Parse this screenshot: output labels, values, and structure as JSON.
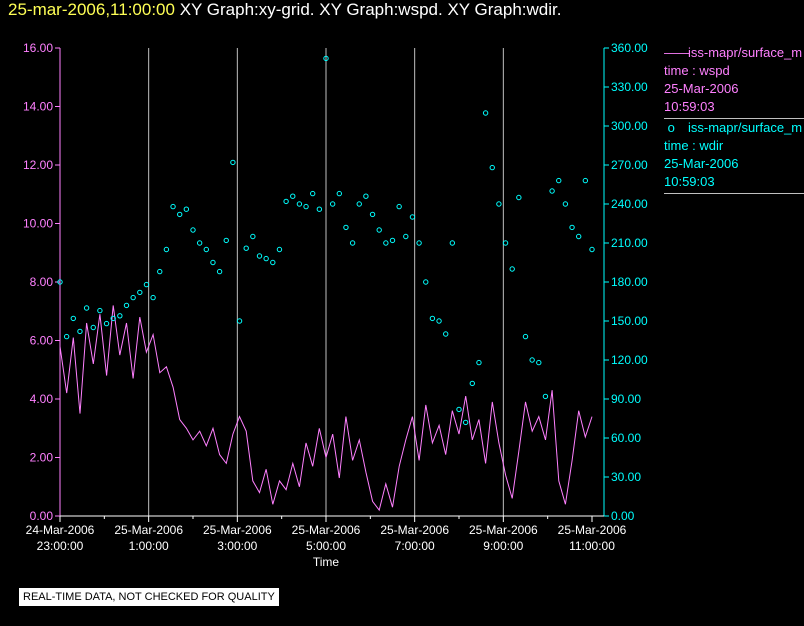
{
  "header": {
    "timestamp": "25-mar-2006,11:00:00",
    "graphs": [
      "XY Graph:xy-grid.",
      "XY Graph:wspd.",
      "XY Graph:wdir."
    ]
  },
  "colors": {
    "wspd": "#ff80ff",
    "wdir": "#00ffff",
    "grid": "#c0c0c0",
    "timestamp": "#ffff55"
  },
  "legend": [
    {
      "source": "iss-mapr/surface_m",
      "var": "time : wspd",
      "date": "25-Mar-2006",
      "time": "10:59:03",
      "symbol": "line"
    },
    {
      "source": "iss-mapr/surface_m",
      "var": "time : wdir",
      "date": "25-Mar-2006",
      "time": "10:59:03",
      "symbol": "circle"
    }
  ],
  "qc_note": "REAL-TIME DATA, NOT CHECKED FOR QUALITY",
  "chart_data": {
    "type": "scatter",
    "xlabel": "Time",
    "x_ticks": [
      {
        "hour": 0,
        "date": "24-Mar-2006",
        "time": "23:00:00"
      },
      {
        "hour": 2,
        "date": "25-Mar-2006",
        "time": "1:00:00"
      },
      {
        "hour": 4,
        "date": "25-Mar-2006",
        "time": "3:00:00"
      },
      {
        "hour": 6,
        "date": "25-Mar-2006",
        "time": "5:00:00"
      },
      {
        "hour": 8,
        "date": "25-Mar-2006",
        "time": "7:00:00"
      },
      {
        "hour": 10,
        "date": "25-Mar-2006",
        "time": "9:00:00"
      },
      {
        "hour": 12,
        "date": "25-Mar-2006",
        "time": "11:00:00"
      }
    ],
    "x_unit": "hours after 24-Mar-2006 23:00:00",
    "xlim": [
      0,
      12
    ],
    "y_left": {
      "series": "wspd",
      "ylim": [
        0,
        16
      ],
      "ticks": [
        "0.00",
        "2.00",
        "4.00",
        "6.00",
        "8.00",
        "10.00",
        "12.00",
        "14.00",
        "16.00"
      ]
    },
    "y_right": {
      "series": "wdir",
      "ylim": [
        0,
        360
      ],
      "ticks": [
        "0.00",
        "30.00",
        "60.00",
        "90.00",
        "120.00",
        "150.00",
        "180.00",
        "210.00",
        "240.00",
        "270.00",
        "300.00",
        "330.00",
        "360.00"
      ]
    },
    "vertical_grid": true,
    "series": [
      {
        "name": "wspd",
        "style": "line",
        "axis": "left",
        "x": [
          0,
          0.15,
          0.3,
          0.45,
          0.6,
          0.75,
          0.9,
          1.05,
          1.2,
          1.35,
          1.5,
          1.65,
          1.8,
          1.95,
          2.1,
          2.25,
          2.4,
          2.55,
          2.7,
          2.85,
          3.0,
          3.15,
          3.3,
          3.45,
          3.6,
          3.75,
          3.9,
          4.05,
          4.2,
          4.35,
          4.5,
          4.65,
          4.8,
          4.95,
          5.1,
          5.25,
          5.4,
          5.55,
          5.7,
          5.85,
          6.0,
          6.15,
          6.3,
          6.45,
          6.6,
          6.75,
          6.9,
          7.05,
          7.2,
          7.35,
          7.5,
          7.65,
          7.8,
          7.95,
          8.1,
          8.25,
          8.4,
          8.55,
          8.7,
          8.85,
          9.0,
          9.15,
          9.3,
          9.45,
          9.6,
          9.75,
          9.9,
          10.05,
          10.2,
          10.35,
          10.5,
          10.65,
          10.8,
          10.95,
          11.1,
          11.25,
          11.4,
          11.55,
          11.7,
          11.85,
          12.0
        ],
        "values": [
          5.8,
          4.2,
          6.1,
          3.5,
          6.6,
          5.2,
          6.9,
          4.8,
          7.2,
          5.5,
          6.6,
          4.7,
          6.8,
          5.6,
          6.2,
          4.9,
          5.1,
          4.4,
          3.3,
          3.0,
          2.6,
          2.9,
          2.4,
          3.0,
          2.1,
          1.8,
          2.8,
          3.4,
          2.9,
          1.2,
          0.8,
          1.6,
          0.4,
          1.2,
          0.9,
          1.8,
          1.0,
          2.5,
          1.7,
          3.0,
          2.0,
          2.8,
          1.3,
          3.4,
          1.9,
          2.6,
          1.5,
          0.5,
          0.2,
          1.1,
          0.3,
          1.7,
          2.6,
          3.4,
          1.9,
          3.8,
          2.5,
          3.1,
          2.1,
          3.6,
          2.8,
          4.1,
          2.6,
          3.3,
          1.8,
          3.9,
          2.5,
          1.4,
          0.6,
          2.2,
          3.9,
          2.9,
          3.4,
          2.6,
          4.3,
          1.2,
          0.4,
          1.9,
          3.6,
          2.7,
          3.4
        ]
      },
      {
        "name": "wdir",
        "style": "circle",
        "axis": "right",
        "x": [
          0,
          0.15,
          0.3,
          0.45,
          0.6,
          0.75,
          0.9,
          1.05,
          1.2,
          1.35,
          1.5,
          1.65,
          1.8,
          1.95,
          2.1,
          2.25,
          2.4,
          2.55,
          2.7,
          2.85,
          3.0,
          3.15,
          3.3,
          3.45,
          3.6,
          3.75,
          3.9,
          4.05,
          4.2,
          4.35,
          4.5,
          4.65,
          4.8,
          4.95,
          5.1,
          5.25,
          5.4,
          5.55,
          5.7,
          5.85,
          6.0,
          6.15,
          6.3,
          6.45,
          6.6,
          6.75,
          6.9,
          7.05,
          7.2,
          7.35,
          7.5,
          7.65,
          7.8,
          7.95,
          8.1,
          8.25,
          8.4,
          8.55,
          8.7,
          8.85,
          9.0,
          9.15,
          9.3,
          9.45,
          9.6,
          9.75,
          9.9,
          10.05,
          10.2,
          10.35,
          10.5,
          10.65,
          10.8,
          10.95,
          11.1,
          11.25,
          11.4,
          11.55,
          11.7,
          11.85,
          12.0
        ],
        "values": [
          180,
          138,
          152,
          142,
          160,
          145,
          158,
          148,
          152,
          154,
          162,
          168,
          172,
          178,
          168,
          188,
          205,
          238,
          232,
          236,
          220,
          210,
          205,
          195,
          188,
          212,
          272,
          150,
          206,
          215,
          200,
          198,
          195,
          205,
          242,
          246,
          240,
          238,
          248,
          236,
          352,
          240,
          248,
          222,
          210,
          240,
          246,
          232,
          220,
          210,
          212,
          238,
          215,
          230,
          210,
          180,
          152,
          150,
          140,
          210,
          82,
          72,
          102,
          118,
          310,
          268,
          240,
          210,
          190,
          245,
          138,
          120,
          118,
          92,
          250,
          258,
          240,
          222,
          215,
          258,
          205
        ]
      }
    ]
  }
}
